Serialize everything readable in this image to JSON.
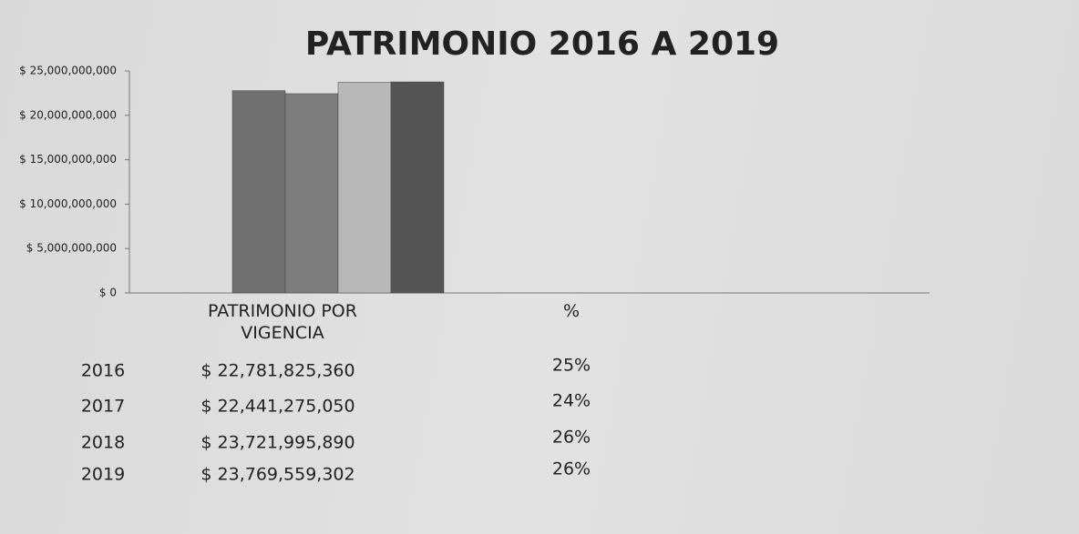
{
  "chart_data": {
    "type": "bar",
    "title": "PATRIMONIO 2016 A 2019",
    "categories": [
      "PATRIMONIO POR VIGENCIA",
      "%"
    ],
    "series": [
      {
        "name": "2016",
        "color": "#707070",
        "values": [
          22781825360,
          25
        ],
        "value_labels": [
          "$ 22,781,825,360",
          "25%"
        ]
      },
      {
        "name": "2017",
        "color": "#7c7c7c",
        "values": [
          22441275050,
          24
        ],
        "value_labels": [
          "$ 22,441,275,050",
          "24%"
        ]
      },
      {
        "name": "2018",
        "color": "#b8b8b8",
        "values": [
          23721995890,
          26
        ],
        "value_labels": [
          "$ 23,721,995,890",
          "26%"
        ]
      },
      {
        "name": "2019",
        "color": "#555555",
        "values": [
          23769559302,
          26
        ],
        "value_labels": [
          "$ 23,769,559,302",
          "26%"
        ]
      }
    ],
    "ylim": [
      0,
      25000000000
    ],
    "yticks": [
      {
        "value": 0,
        "label": "$ 0"
      },
      {
        "value": 5000000000,
        "label": "$ 5,000,000,000"
      },
      {
        "value": 10000000000,
        "label": "$ 10,000,000,000"
      },
      {
        "value": 15000000000,
        "label": "$ 15,000,000,000"
      },
      {
        "value": 20000000000,
        "label": "$ 20,000,000,000"
      },
      {
        "value": 25000000000,
        "label": "$ 25,000,000,000"
      }
    ]
  }
}
